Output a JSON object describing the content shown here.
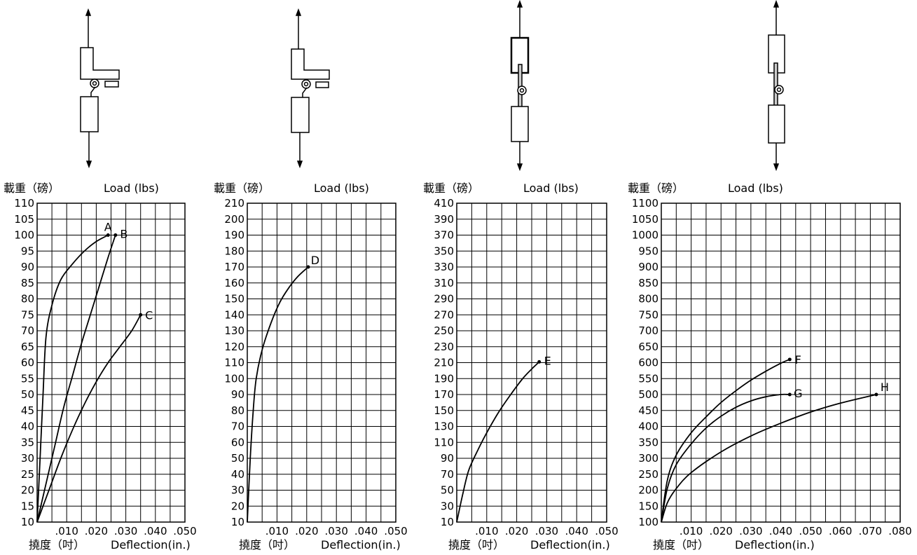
{
  "chart_data": [
    {
      "type": "line",
      "ylabel_cn": "載重（磅）",
      "ylabel_en": "Load (lbs)",
      "xlabel_cn": "撓度（吋）",
      "xlabel_en": "Deflection(in.)",
      "xlim": [
        0,
        0.05
      ],
      "ylim": [
        10,
        110
      ],
      "x_ticks": [
        ".010",
        ".020",
        ".030",
        ".040",
        ".050"
      ],
      "y_ticks": [
        "10",
        "15",
        "20",
        "25",
        "30",
        "35",
        "40",
        "45",
        "50",
        "55",
        "60",
        "65",
        "70",
        "75",
        "80",
        "85",
        "90",
        "95",
        "100",
        "105",
        "110"
      ],
      "grid": true,
      "series": [
        {
          "name": "A",
          "x": [
            0,
            0.001,
            0.002,
            0.003,
            0.005,
            0.008,
            0.012,
            0.016,
            0.02,
            0.024
          ],
          "y": [
            10,
            30,
            50,
            68,
            78,
            86,
            91,
            95,
            98,
            100
          ]
        },
        {
          "name": "B",
          "x": [
            0,
            0.003,
            0.006,
            0.009,
            0.012,
            0.015,
            0.018,
            0.021,
            0.024,
            0.0265
          ],
          "y": [
            10,
            22,
            34,
            46,
            56,
            66,
            75,
            84,
            93,
            100
          ]
        },
        {
          "name": "C",
          "x": [
            0,
            0.004,
            0.008,
            0.012,
            0.016,
            0.02,
            0.024,
            0.028,
            0.032,
            0.035
          ],
          "y": [
            10,
            20,
            30,
            39,
            47,
            54,
            60,
            65,
            70,
            75
          ]
        }
      ]
    },
    {
      "type": "line",
      "ylabel_cn": "載重（磅）",
      "ylabel_en": "Load (lbs)",
      "xlabel_cn": "撓度（吋）",
      "xlabel_en": "Deflection(in.)",
      "xlim": [
        0,
        0.05
      ],
      "ylim": [
        10,
        210
      ],
      "x_ticks": [
        ".010",
        ".020",
        ".030",
        ".040",
        ".050"
      ],
      "y_ticks": [
        "10",
        "20",
        "30",
        "40",
        "50",
        "60",
        "70",
        "80",
        "90",
        "100",
        "110",
        "120",
        "130",
        "140",
        "150",
        "160",
        "170",
        "180",
        "190",
        "200",
        "210"
      ],
      "grid": true,
      "series": [
        {
          "name": "D",
          "x": [
            0,
            0.001,
            0.002,
            0.003,
            0.005,
            0.008,
            0.011,
            0.014,
            0.017,
            0.0205
          ],
          "y": [
            10,
            50,
            80,
            100,
            118,
            135,
            148,
            157,
            164,
            170
          ]
        }
      ]
    },
    {
      "type": "line",
      "ylabel_cn": "載重（磅）",
      "ylabel_en": "Load (lbs)",
      "xlabel_cn": "撓度（吋）",
      "xlabel_en": "Deflection(in.)",
      "xlim": [
        0,
        0.05
      ],
      "ylim": [
        10,
        410
      ],
      "x_ticks": [
        ".010",
        ".020",
        ".030",
        ".040",
        ".050"
      ],
      "y_ticks": [
        "10",
        "30",
        "50",
        "70",
        "90",
        "110",
        "130",
        "150",
        "170",
        "190",
        "210",
        "230",
        "250",
        "270",
        "290",
        "310",
        "330",
        "350",
        "370",
        "390",
        "410"
      ],
      "grid": true,
      "series": [
        {
          "name": "E",
          "x": [
            0,
            0.002,
            0.004,
            0.007,
            0.01,
            0.014,
            0.018,
            0.022,
            0.025,
            0.0275
          ],
          "y": [
            10,
            45,
            75,
            100,
            122,
            148,
            170,
            190,
            202,
            211
          ]
        }
      ]
    },
    {
      "type": "line",
      "ylabel_cn": "載重（磅）",
      "ylabel_en": "Load (lbs)",
      "xlabel_cn": "撓度（吋）",
      "xlabel_en": "Deflection(in.)",
      "xlim": [
        0,
        0.08
      ],
      "ylim": [
        100,
        1100
      ],
      "x_ticks": [
        ".010",
        ".020",
        ".030",
        ".040",
        ".050",
        ".060",
        ".070",
        ".080"
      ],
      "y_ticks": [
        "100",
        "150",
        "200",
        "250",
        "300",
        "350",
        "400",
        "450",
        "500",
        "550",
        "600",
        "650",
        "700",
        "750",
        "800",
        "850",
        "900",
        "950",
        "1000",
        "1050",
        "1100"
      ],
      "grid": true,
      "series": [
        {
          "name": "F",
          "x": [
            0,
            0.002,
            0.005,
            0.01,
            0.015,
            0.02,
            0.025,
            0.03,
            0.035,
            0.04,
            0.043
          ],
          "y": [
            100,
            230,
            310,
            380,
            430,
            475,
            512,
            545,
            573,
            598,
            610
          ]
        },
        {
          "name": "G",
          "x": [
            0,
            0.002,
            0.005,
            0.01,
            0.015,
            0.02,
            0.025,
            0.03,
            0.035,
            0.04,
            0.043
          ],
          "y": [
            100,
            205,
            280,
            345,
            395,
            432,
            460,
            480,
            493,
            500,
            500
          ]
        },
        {
          "name": "H",
          "x": [
            0,
            0.002,
            0.005,
            0.01,
            0.02,
            0.03,
            0.04,
            0.05,
            0.06,
            0.072
          ],
          "y": [
            100,
            160,
            205,
            255,
            320,
            370,
            410,
            445,
            473,
            500
          ]
        }
      ]
    }
  ],
  "diagrams": [
    "bracket-hinge-test-1",
    "bracket-hinge-test-2",
    "straight-hinge-test-3",
    "straight-hinge-test-4"
  ]
}
